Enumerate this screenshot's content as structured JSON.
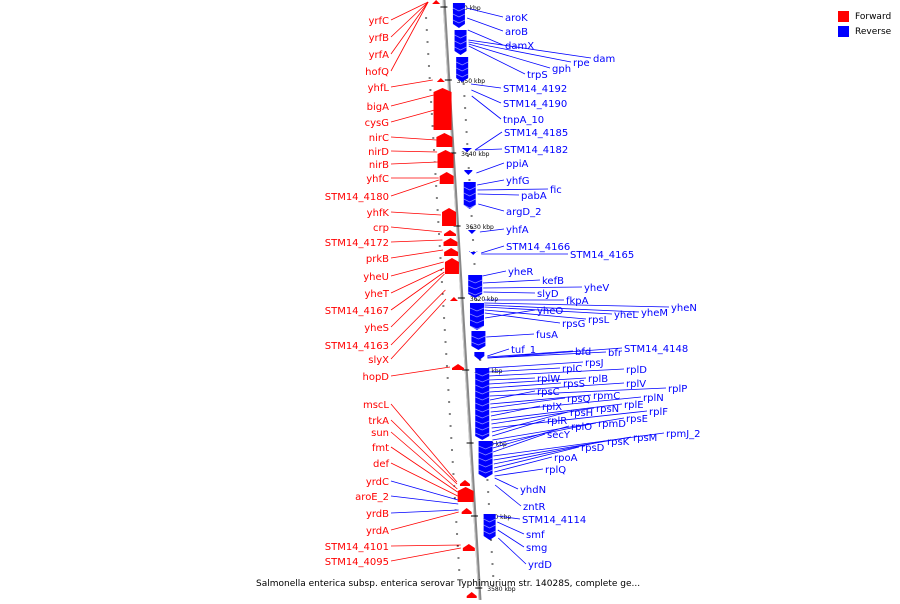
{
  "caption": "Salmonella enterica subsp. enterica serovar Typhimurium str. 14028S, complete ge...",
  "legend": [
    {
      "label": "Forward",
      "color": "#ff0000"
    },
    {
      "label": "Reverse",
      "color": "#0000ff"
    }
  ],
  "colors": {
    "forward": "#ff0000",
    "reverse": "#0000ff",
    "axis": "#999999"
  },
  "ticks": [
    "3660 kbp",
    "3650 kbp",
    "3640 kbp",
    "3630 kbp",
    "3620 kbp",
    "3610 kbp",
    "3600 kbp",
    "3590 kbp",
    "3580 kbp"
  ],
  "forward_labels": [
    "yrfC",
    "yrfB",
    "yrfA",
    "hofQ",
    "yhfL",
    "bigA",
    "cysG",
    "nirC",
    "nirD",
    "nirB",
    "yhfC",
    "STM14_4180",
    "yhfK",
    "crp",
    "STM14_4172",
    "prkB",
    "yheU",
    "yheT",
    "STM14_4167",
    "yheS",
    "STM14_4163",
    "slyX",
    "hopD",
    "mscL",
    "trkA",
    "sun",
    "fmt",
    "def",
    "yrdC",
    "aroE_2",
    "yrdB",
    "yrdA",
    "STM14_4101",
    "STM14_4095"
  ],
  "reverse_labels": [
    "aroK",
    "aroB",
    "damX",
    "dam",
    "rpe",
    "gph",
    "trpS",
    "STM14_4192",
    "STM14_4190",
    "tnpA_10",
    "STM14_4185",
    "STM14_4182",
    "ppiA",
    "yhfG",
    "fic",
    "pabA",
    "argD_2",
    "yhfA",
    "STM14_4166",
    "STM14_4165",
    "yheR",
    "kefB",
    "yheV",
    "slyD",
    "fkpA",
    "yheN",
    "yheM",
    "yheL",
    "rpsL",
    "rpsG",
    "yheO",
    "fusA",
    "tuf_1",
    "bfd",
    "bfr",
    "STM14_4148",
    "rpsJ",
    "rplC",
    "rplD",
    "rplW",
    "rplB",
    "rpsS",
    "rplV",
    "rplP",
    "rpsC",
    "rpmC",
    "rpsQ",
    "rplN",
    "rplX",
    "rplE",
    "rpsN",
    "rplF",
    "rpsH",
    "rplR",
    "rpsE",
    "rpmD",
    "rplO",
    "secY",
    "rpmJ_2",
    "rpsM",
    "rpsK",
    "rpsD",
    "rpoA",
    "rplQ",
    "yhdN",
    "zntR",
    "STM14_4114",
    "smf",
    "smg",
    "yrdD"
  ]
}
